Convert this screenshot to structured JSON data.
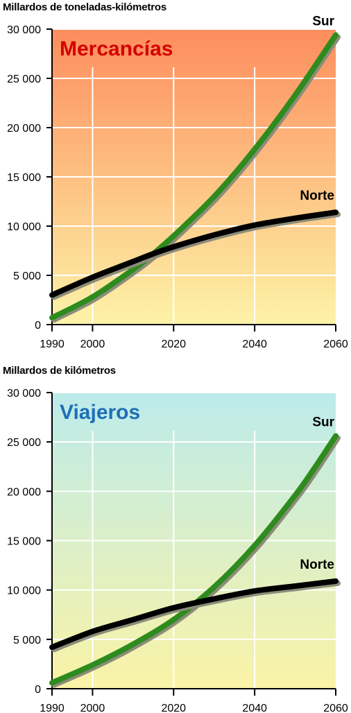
{
  "charts": [
    {
      "id": "chart1",
      "ylabel": "Millardos de toneladas-kilómetros",
      "title": "Mercancías",
      "title_color": "#d40000",
      "gradient": [
        "#fd8d5d",
        "#fdf3a8"
      ],
      "chart_data": {
        "type": "line",
        "title": "Mercancías",
        "ylabel": "Millardos de toneladas-kilómetros",
        "xlim": [
          1990,
          2060
        ],
        "ylim": [
          0,
          30000
        ],
        "x_ticks": [
          1990,
          2000,
          2020,
          2040,
          2060
        ],
        "y_ticks": [
          0,
          5000,
          10000,
          15000,
          20000,
          25000,
          30000
        ],
        "y_tick_labels": [
          "0",
          "5 000",
          "10 000",
          "15 000",
          "20 000",
          "25 000",
          "30 000"
        ],
        "x_tick_labels": [
          "1990",
          "2000",
          "2020",
          "2040",
          "2060"
        ],
        "grid": true,
        "series": [
          {
            "name": "Sur",
            "color": "#2e8b1e",
            "x": [
              1990,
              2000,
              2010,
              2015,
              2020,
              2030,
              2040,
              2050,
              2060
            ],
            "y": [
              700,
              2800,
              5600,
              7200,
              9000,
              13000,
              17800,
              23300,
              29400
            ]
          },
          {
            "name": "Norte",
            "color": "#000000",
            "x": [
              1990,
              2000,
              2010,
              2015,
              2020,
              2030,
              2040,
              2050,
              2060
            ],
            "y": [
              3000,
              4800,
              6400,
              7200,
              7900,
              9100,
              10100,
              10800,
              11400
            ]
          }
        ]
      }
    },
    {
      "id": "chart2",
      "ylabel": "Millardos de kilómetros",
      "title": "Viajeros",
      "title_color": "#1f6eb8",
      "gradient": [
        "#bcebeb",
        "#faf3a6"
      ],
      "chart_data": {
        "type": "line",
        "title": "Viajeros",
        "ylabel": "Millardos de kilómetros",
        "xlim": [
          1990,
          2060
        ],
        "ylim": [
          0,
          30000
        ],
        "x_ticks": [
          1990,
          2000,
          2020,
          2040,
          2060
        ],
        "y_ticks": [
          0,
          5000,
          10000,
          15000,
          20000,
          25000,
          30000
        ],
        "y_tick_labels": [
          "0",
          "5 000",
          "10 000",
          "15 000",
          "20 000",
          "25 000",
          "30 000"
        ],
        "x_tick_labels": [
          "1990",
          "2000",
          "2020",
          "2040",
          "2060"
        ],
        "grid": true,
        "series": [
          {
            "name": "Sur",
            "color": "#2e8b1e",
            "x": [
              1990,
              2000,
              2010,
              2020,
              2030,
              2040,
              2050,
              2055,
              2060
            ],
            "y": [
              600,
              2400,
              4500,
              7000,
              10300,
              14500,
              19600,
              22500,
              25600
            ]
          },
          {
            "name": "Norte",
            "color": "#000000",
            "x": [
              1990,
              2000,
              2010,
              2020,
              2030,
              2040,
              2050,
              2060
            ],
            "y": [
              4200,
              5800,
              7000,
              8200,
              9100,
              9900,
              10400,
              10900
            ]
          }
        ]
      }
    }
  ]
}
